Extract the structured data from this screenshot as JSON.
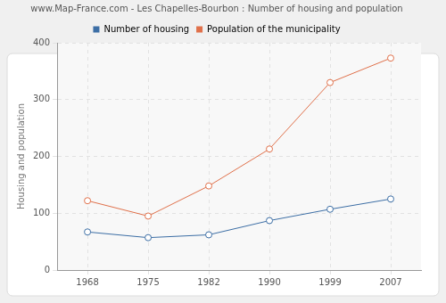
{
  "chart_data": {
    "type": "line",
    "title": "www.Map-France.com - Les Chapelles-Bourbon : Number of housing and population",
    "y_label": "Housing and population",
    "categories": [
      "1968",
      "1975",
      "1982",
      "1990",
      "1999",
      "2007"
    ],
    "series": [
      {
        "name": "Number of housing",
        "color": "#3c6ea5",
        "values": [
          67,
          57,
          62,
          87,
          107,
          125
        ]
      },
      {
        "name": "Population of the municipality",
        "color": "#e0704a",
        "values": [
          122,
          95,
          148,
          213,
          330,
          373
        ]
      }
    ],
    "ylim": [
      0,
      400
    ],
    "yticks": [
      0,
      100,
      200,
      300,
      400
    ],
    "grid": true,
    "legend": "top",
    "marker": "circle"
  }
}
